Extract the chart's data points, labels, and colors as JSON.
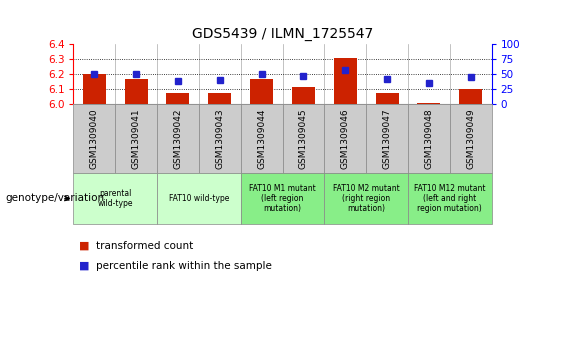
{
  "title": "GDS5439 / ILMN_1725547",
  "samples": [
    "GSM1309040",
    "GSM1309041",
    "GSM1309042",
    "GSM1309043",
    "GSM1309044",
    "GSM1309045",
    "GSM1309046",
    "GSM1309047",
    "GSM1309048",
    "GSM1309049"
  ],
  "transformed_count": [
    6.2,
    6.165,
    6.07,
    6.075,
    6.165,
    6.115,
    6.305,
    6.075,
    6.01,
    6.1
  ],
  "percentile_rank": [
    50.5,
    50.0,
    38.0,
    39.0,
    50.0,
    47.0,
    57.0,
    42.0,
    35.0,
    45.0
  ],
  "ylim_left": [
    6.0,
    6.4
  ],
  "ylim_right": [
    0,
    100
  ],
  "yticks_left": [
    6.0,
    6.1,
    6.2,
    6.3,
    6.4
  ],
  "yticks_right": [
    0,
    25,
    50,
    75,
    100
  ],
  "bar_color": "#cc2200",
  "dot_color": "#2222cc",
  "bg_color": "#ffffff",
  "sample_row_color": "#cccccc",
  "genotype_groups": [
    {
      "label": "parental\nwild-type",
      "start": 0,
      "end": 1,
      "color": "#ccffcc"
    },
    {
      "label": "FAT10 wild-type",
      "start": 2,
      "end": 3,
      "color": "#ccffcc"
    },
    {
      "label": "FAT10 M1 mutant\n(left region\nmutation)",
      "start": 4,
      "end": 5,
      "color": "#88ee88"
    },
    {
      "label": "FAT10 M2 mutant\n(right region\nmutation)",
      "start": 6,
      "end": 7,
      "color": "#88ee88"
    },
    {
      "label": "FAT10 M12 mutant\n(left and right\nregion mutation)",
      "start": 8,
      "end": 9,
      "color": "#88ee88"
    }
  ],
  "legend_red_label": "transformed count",
  "legend_blue_label": "percentile rank within the sample",
  "genotype_label": "genotype/variation"
}
